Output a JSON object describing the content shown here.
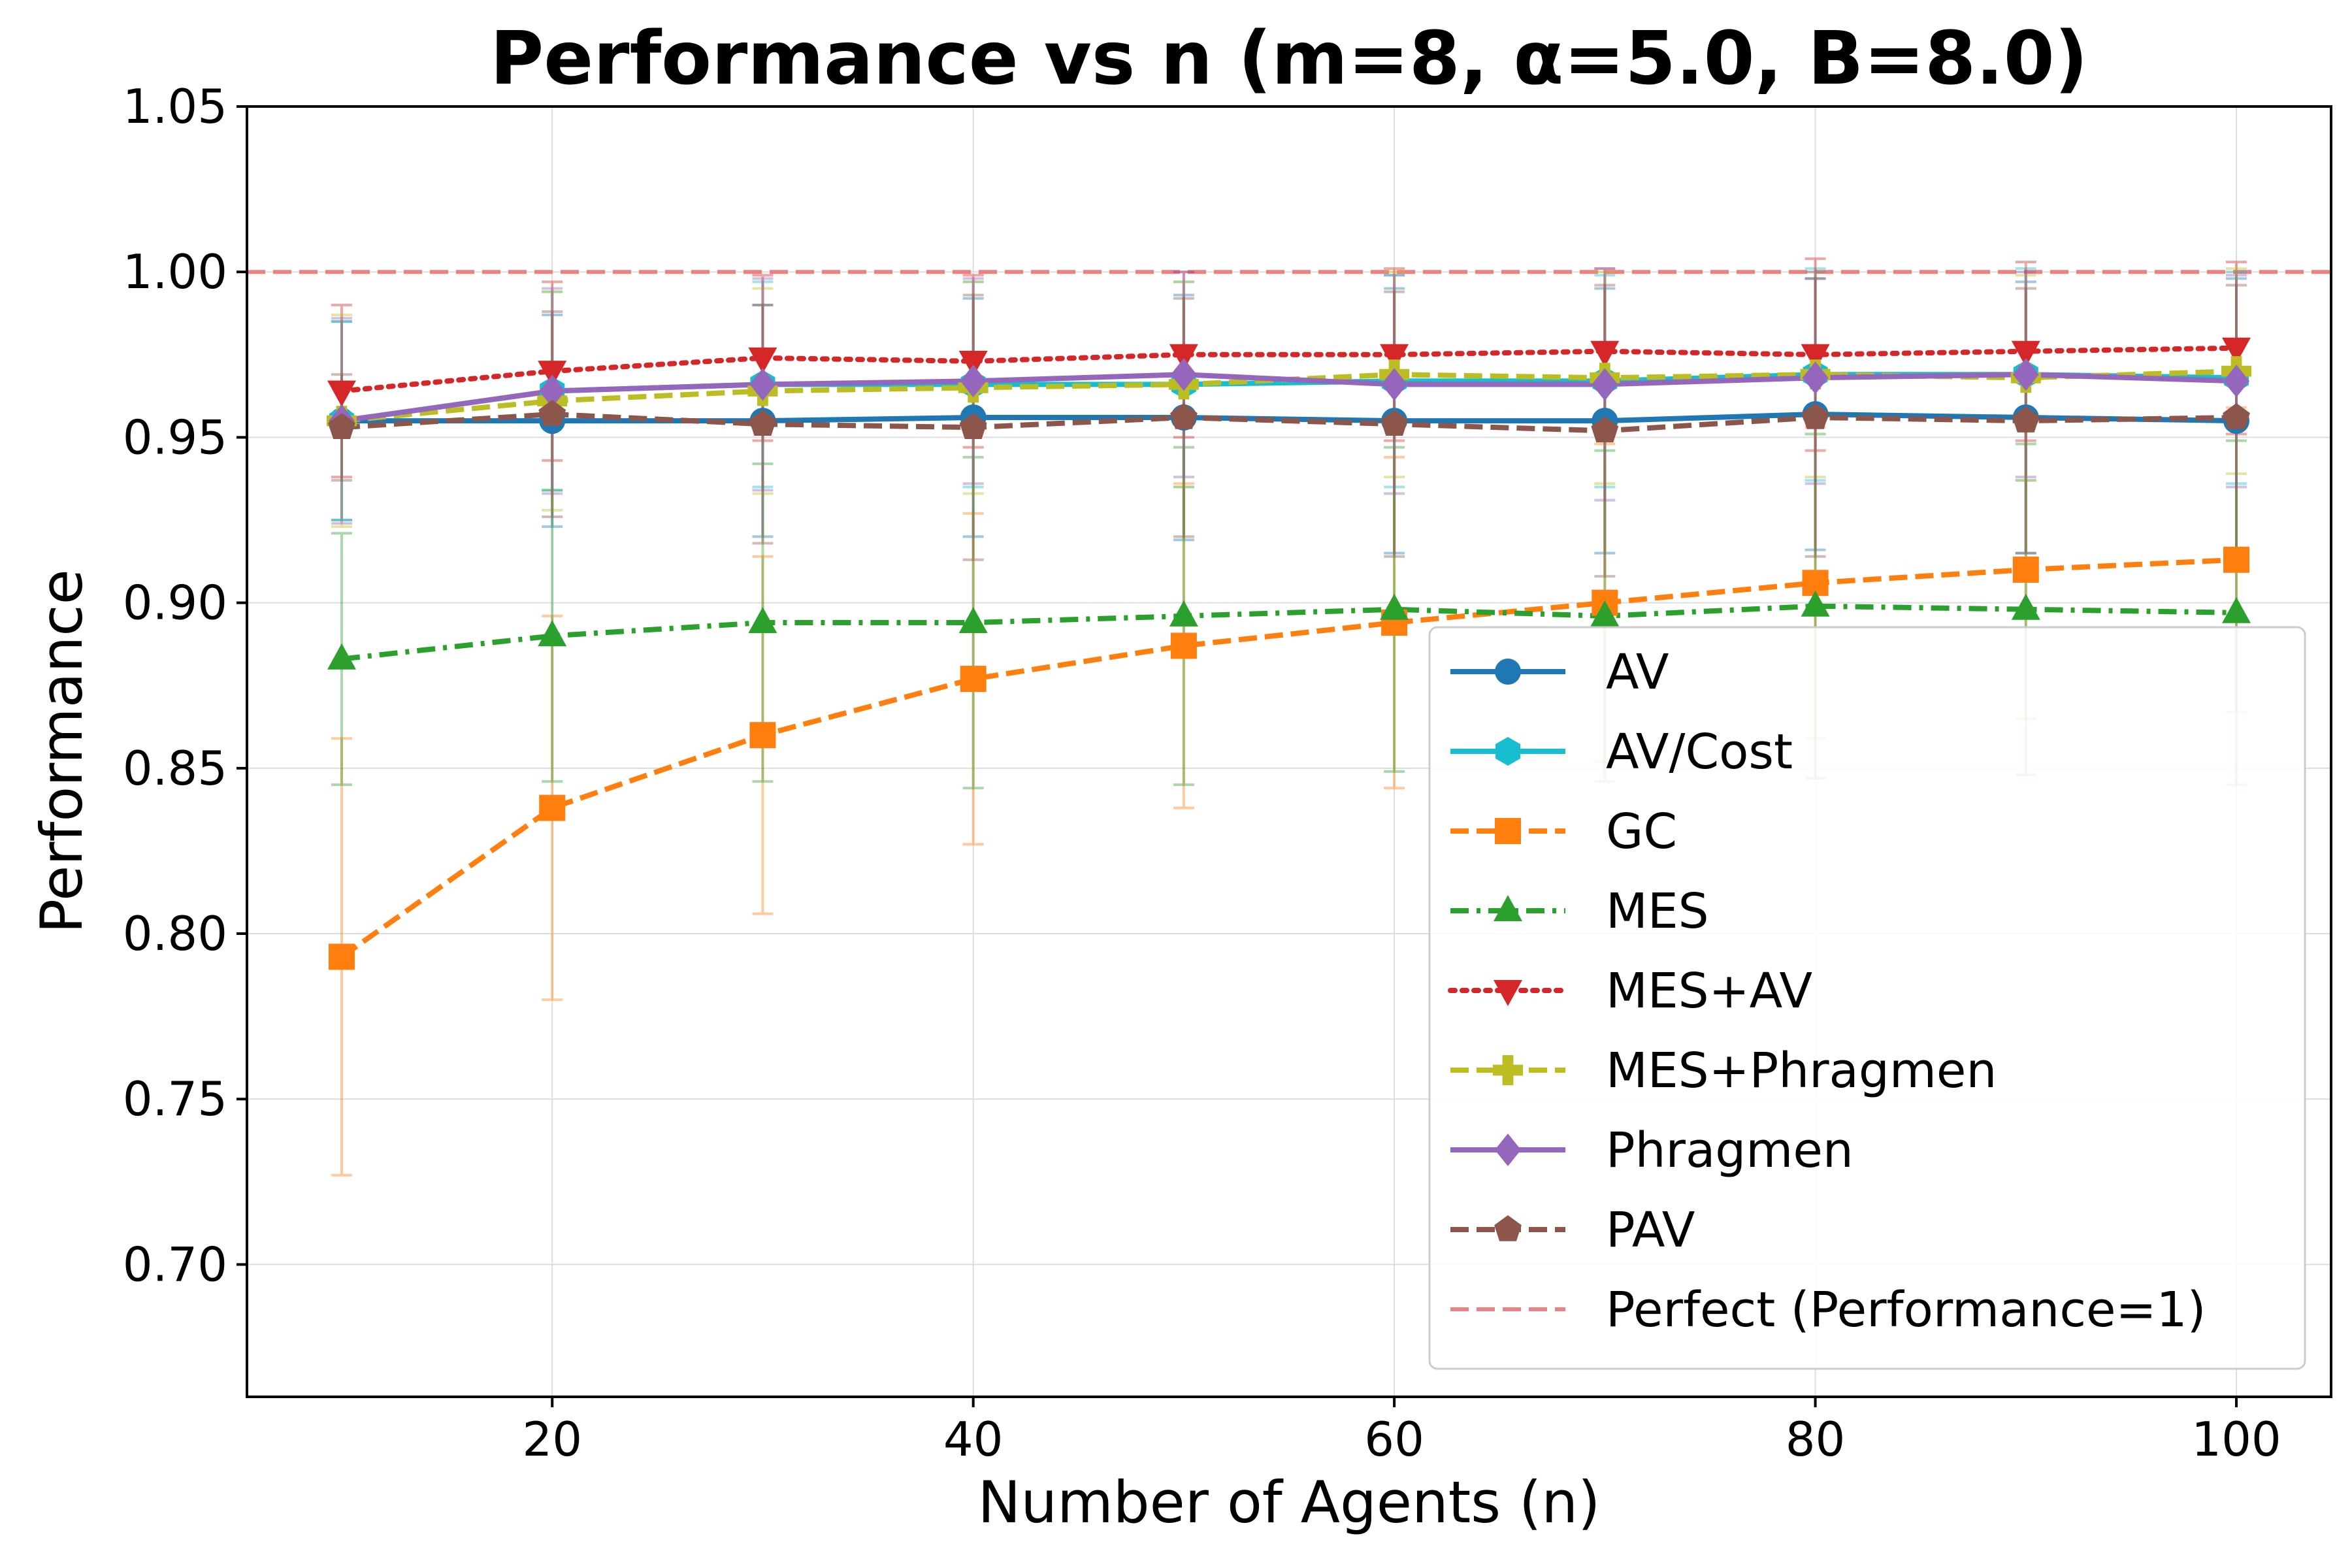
{
  "chart_data": {
    "type": "line",
    "title": "Performance vs n (m=8, α=5.0, B=8.0)",
    "xlabel": "Number of Agents (n)",
    "ylabel": "Performance",
    "xlim": [
      5.5,
      104.5
    ],
    "ylim": [
      0.66,
      1.05
    ],
    "xticks": [
      20,
      40,
      60,
      80,
      100
    ],
    "xtick_labels": [
      "20",
      "40",
      "60",
      "80",
      "100"
    ],
    "yticks": [
      0.7,
      0.75,
      0.8,
      0.85,
      0.9,
      0.95,
      1.0,
      1.05
    ],
    "ytick_labels": [
      "0.70",
      "0.75",
      "0.80",
      "0.85",
      "0.90",
      "0.95",
      "1.00",
      "1.05"
    ],
    "grid": true,
    "legend_position": "bottom-right",
    "x": [
      10,
      20,
      30,
      40,
      50,
      60,
      70,
      80,
      90,
      100
    ],
    "series": [
      {
        "name": "AV",
        "color": "#1f77b4",
        "marker": "circle",
        "dash": "solid",
        "values": [
          0.955,
          0.955,
          0.955,
          0.956,
          0.956,
          0.955,
          0.955,
          0.957,
          0.956,
          0.955
        ],
        "err": [
          0.03,
          0.032,
          0.035,
          0.036,
          0.037,
          0.04,
          0.04,
          0.041,
          0.041,
          0.043
        ]
      },
      {
        "name": "AV/Cost",
        "color": "#17becf",
        "marker": "hexagon",
        "dash": "solid",
        "values": [
          0.955,
          0.964,
          0.966,
          0.966,
          0.966,
          0.967,
          0.967,
          0.969,
          0.969,
          0.968
        ],
        "err": [
          0.03,
          0.03,
          0.031,
          0.031,
          0.031,
          0.032,
          0.032,
          0.032,
          0.032,
          0.032
        ]
      },
      {
        "name": "GC",
        "color": "#ff7f0e",
        "marker": "square",
        "dash": "dashed",
        "values": [
          0.793,
          0.838,
          0.86,
          0.877,
          0.887,
          0.894,
          0.9,
          0.906,
          0.91,
          0.913
        ],
        "err": [
          0.066,
          0.058,
          0.054,
          0.05,
          0.049,
          0.05,
          0.048,
          0.047,
          0.045,
          0.046
        ]
      },
      {
        "name": "MES",
        "color": "#2ca02c",
        "marker": "triangle-up",
        "dash": "dashdot",
        "values": [
          0.883,
          0.89,
          0.894,
          0.894,
          0.896,
          0.898,
          0.896,
          0.899,
          0.898,
          0.897
        ],
        "err": [
          0.038,
          0.044,
          0.048,
          0.05,
          0.051,
          0.049,
          0.05,
          0.052,
          0.05,
          0.052
        ]
      },
      {
        "name": "MES+AV",
        "color": "#d62728",
        "marker": "triangle-down",
        "dash": "dotted",
        "values": [
          0.964,
          0.97,
          0.974,
          0.973,
          0.975,
          0.975,
          0.976,
          0.975,
          0.976,
          0.977
        ],
        "err": [
          0.026,
          0.027,
          0.025,
          0.026,
          0.025,
          0.026,
          0.025,
          0.029,
          0.027,
          0.026
        ]
      },
      {
        "name": "MES+Phragmen",
        "color": "#bcbd22",
        "marker": "plus",
        "dash": "dashed",
        "values": [
          0.955,
          0.961,
          0.964,
          0.965,
          0.966,
          0.969,
          0.968,
          0.969,
          0.968,
          0.97
        ],
        "err": [
          0.032,
          0.033,
          0.031,
          0.032,
          0.031,
          0.031,
          0.032,
          0.031,
          0.031,
          0.031
        ]
      },
      {
        "name": "Phragmen",
        "color": "#9467bd",
        "marker": "diamond",
        "dash": "solid",
        "values": [
          0.955,
          0.964,
          0.966,
          0.967,
          0.969,
          0.966,
          0.966,
          0.968,
          0.969,
          0.967
        ],
        "err": [
          0.031,
          0.031,
          0.032,
          0.031,
          0.031,
          0.033,
          0.035,
          0.032,
          0.031,
          0.032
        ]
      },
      {
        "name": "PAV",
        "color": "#8c564b",
        "marker": "pentagon",
        "dash": "dashed",
        "values": [
          0.953,
          0.957,
          0.954,
          0.953,
          0.956,
          0.954,
          0.952,
          0.956,
          0.955,
          0.956
        ],
        "err": [
          0.016,
          0.031,
          0.036,
          0.04,
          0.036,
          0.04,
          0.044,
          0.042,
          0.04,
          0.04
        ]
      }
    ],
    "reference_line": {
      "name": "Perfect (Performance=1)",
      "y": 1.0,
      "color": "#f08080",
      "dash": "dashed"
    }
  }
}
